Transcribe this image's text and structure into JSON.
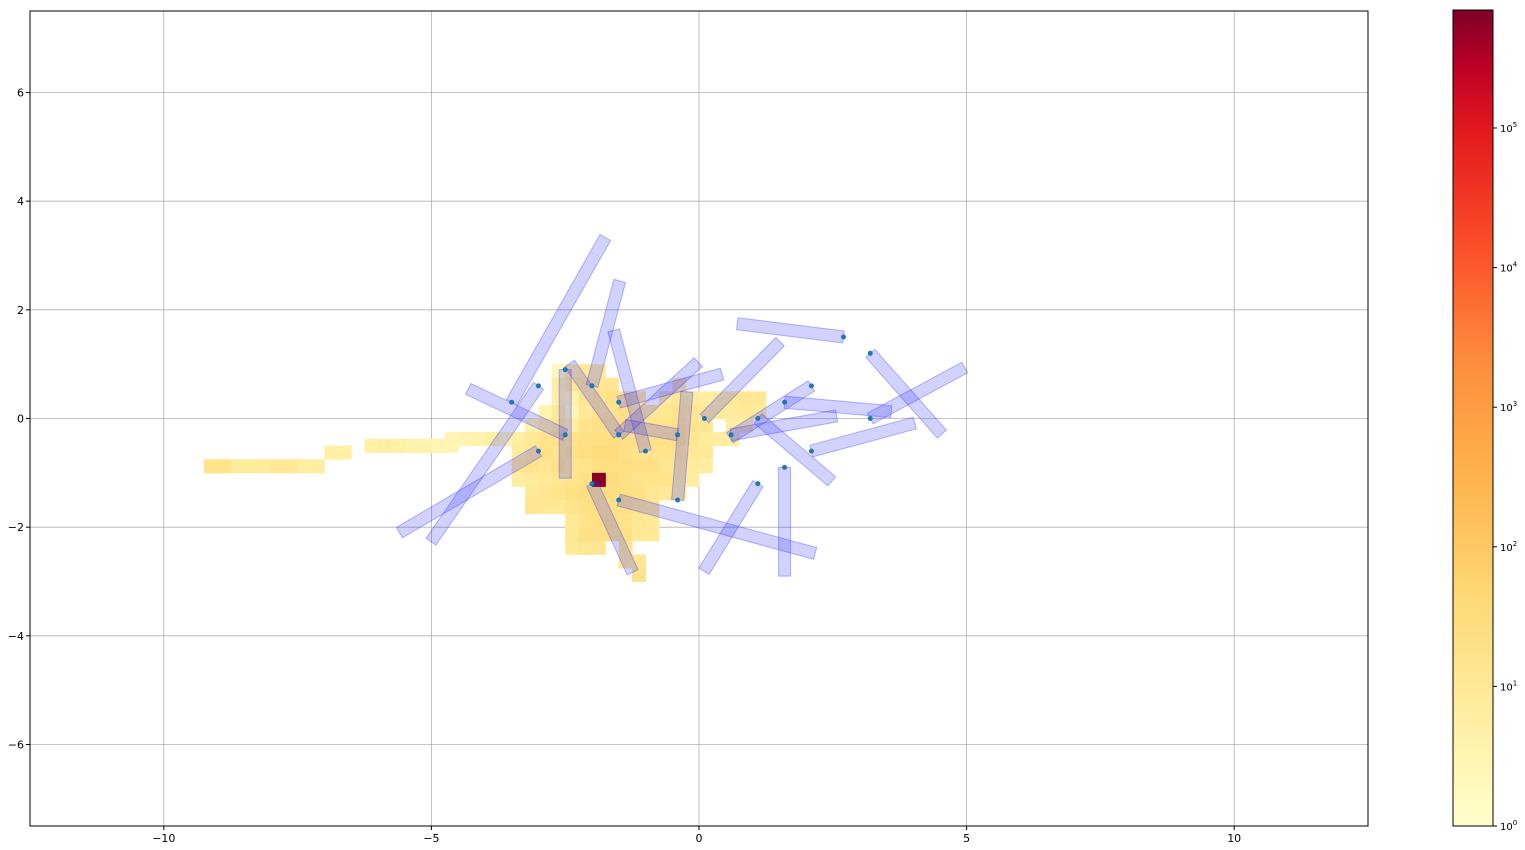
{
  "chart_data": {
    "type": "heatmap",
    "title": "",
    "xlabel": "",
    "ylabel": "",
    "xlim": [
      -12.5,
      12.5
    ],
    "ylim": [
      -7.5,
      7.5
    ],
    "grid": true,
    "x_ticks": [
      {
        "value": -10,
        "label": "−10"
      },
      {
        "value": -5,
        "label": "−5"
      },
      {
        "value": 0,
        "label": "0"
      },
      {
        "value": 5,
        "label": "5"
      },
      {
        "value": 10,
        "label": "10"
      }
    ],
    "y_ticks": [
      {
        "value": -6,
        "label": "−6"
      },
      {
        "value": -4,
        "label": "−4"
      },
      {
        "value": -2,
        "label": "−2"
      },
      {
        "value": 0,
        "label": "0"
      },
      {
        "value": 2,
        "label": "2"
      },
      {
        "value": 4,
        "label": "4"
      },
      {
        "value": 6,
        "label": "6"
      }
    ],
    "colorbar": {
      "scale": "log",
      "colormap": "YlOrRd",
      "range": [
        1,
        700000
      ],
      "ticks": [
        {
          "exp": 0,
          "label": "10",
          "sup": "0"
        },
        {
          "exp": 1,
          "label": "10",
          "sup": "1"
        },
        {
          "exp": 2,
          "label": "10",
          "sup": "2"
        },
        {
          "exp": 3,
          "label": "10",
          "sup": "3"
        },
        {
          "exp": 4,
          "label": "10",
          "sup": "4"
        },
        {
          "exp": 5,
          "label": "10",
          "sup": "5"
        }
      ]
    },
    "histogram_cell_size": 0.25,
    "cells": [
      [
        -9.125,
        -0.875,
        1.2
      ],
      [
        -8.875,
        -0.875,
        1.2
      ],
      [
        -8.625,
        -0.875,
        0.9
      ],
      [
        -8.375,
        -0.875,
        0.9
      ],
      [
        -8.125,
        -0.875,
        0.9
      ],
      [
        -7.875,
        -0.875,
        1.0
      ],
      [
        -7.625,
        -0.875,
        1.0
      ],
      [
        -7.375,
        -0.875,
        0.8
      ],
      [
        -7.125,
        -0.875,
        0.8
      ],
      [
        -6.875,
        -0.625,
        0.7
      ],
      [
        -6.625,
        -0.625,
        0.7
      ],
      [
        -6.125,
        -0.5,
        0.7
      ],
      [
        -5.875,
        -0.5,
        0.8
      ],
      [
        -5.625,
        -0.5,
        0.7
      ],
      [
        -5.375,
        -0.5,
        0.6
      ],
      [
        -5.125,
        -0.5,
        0.6
      ],
      [
        -4.875,
        -0.5,
        0.5
      ],
      [
        -4.625,
        -0.5,
        0.4
      ],
      [
        -4.625,
        -0.375,
        0.4
      ],
      [
        -4.375,
        -0.375,
        0.5
      ],
      [
        -4.125,
        -0.375,
        0.6
      ],
      [
        -3.875,
        -0.375,
        0.7
      ],
      [
        -3.625,
        -0.375,
        0.5
      ],
      [
        -3.375,
        -0.375,
        0.8
      ],
      [
        -3.375,
        -0.625,
        0.9
      ],
      [
        -3.375,
        -0.875,
        1.1
      ],
      [
        -3.375,
        -1.125,
        0.8
      ],
      [
        -3.125,
        -0.125,
        0.6
      ],
      [
        -3.125,
        -0.375,
        1.0
      ],
      [
        -3.125,
        -0.625,
        1.1
      ],
      [
        -3.125,
        -0.875,
        1.2
      ],
      [
        -3.125,
        -1.125,
        0.9
      ],
      [
        -3.125,
        -1.375,
        1.0
      ],
      [
        -3.125,
        -1.625,
        1.1
      ],
      [
        -2.875,
        0.125,
        0.5
      ],
      [
        -2.875,
        -0.125,
        0.9
      ],
      [
        -2.875,
        -0.375,
        1.2
      ],
      [
        -2.875,
        -0.625,
        1.3
      ],
      [
        -2.875,
        -0.875,
        1.1
      ],
      [
        -2.875,
        -1.125,
        1.0
      ],
      [
        -2.875,
        -1.375,
        1.1
      ],
      [
        -2.875,
        -1.625,
        1.0
      ],
      [
        -2.625,
        0.875,
        0.3
      ],
      [
        -2.625,
        0.625,
        0.8
      ],
      [
        -2.625,
        0.375,
        0.7
      ],
      [
        -2.625,
        0.125,
        1.0
      ],
      [
        -2.625,
        -0.125,
        1.2
      ],
      [
        -2.625,
        -0.375,
        1.3
      ],
      [
        -2.625,
        -0.625,
        1.2
      ],
      [
        -2.625,
        -0.875,
        1.3
      ],
      [
        -2.625,
        -1.125,
        1.1
      ],
      [
        -2.625,
        -1.375,
        1.2
      ],
      [
        -2.625,
        -1.625,
        1.0
      ],
      [
        -2.375,
        0.875,
        0.9
      ],
      [
        -2.375,
        0.625,
        1.1
      ],
      [
        -2.375,
        0.375,
        0.6
      ],
      [
        -2.375,
        0.125,
        0.4
      ],
      [
        -2.375,
        -0.125,
        0.8
      ],
      [
        -2.375,
        -0.375,
        1.2
      ],
      [
        -2.375,
        -0.625,
        1.3
      ],
      [
        -2.375,
        -0.875,
        1.1
      ],
      [
        -2.375,
        -1.125,
        1.2
      ],
      [
        -2.375,
        -1.375,
        1.3
      ],
      [
        -2.375,
        -1.625,
        1.2
      ],
      [
        -2.375,
        -1.875,
        1.0
      ],
      [
        -2.375,
        -2.125,
        1.1
      ],
      [
        -2.375,
        -2.375,
        1.0
      ],
      [
        -2.125,
        0.875,
        1.0
      ],
      [
        -2.125,
        0.625,
        1.2
      ],
      [
        -2.125,
        0.375,
        1.1
      ],
      [
        -2.125,
        0.125,
        1.0
      ],
      [
        -2.125,
        -0.125,
        1.2
      ],
      [
        -2.125,
        -0.375,
        1.3
      ],
      [
        -2.125,
        -0.625,
        1.4
      ],
      [
        -2.125,
        -0.875,
        1.2
      ],
      [
        -2.125,
        -1.125,
        1.3
      ],
      [
        -2.125,
        -1.375,
        1.4
      ],
      [
        -2.125,
        -1.625,
        1.3
      ],
      [
        -2.125,
        -1.875,
        1.2
      ],
      [
        -2.125,
        -2.125,
        1.3
      ],
      [
        -2.125,
        -2.375,
        1.1
      ],
      [
        -1.875,
        0.875,
        0.9
      ],
      [
        -1.875,
        0.625,
        1.1
      ],
      [
        -1.875,
        0.375,
        1.2
      ],
      [
        -1.875,
        0.125,
        1.2
      ],
      [
        -1.875,
        -0.125,
        1.3
      ],
      [
        -1.875,
        -0.375,
        1.4
      ],
      [
        -1.875,
        -0.625,
        1.5
      ],
      [
        -1.875,
        -0.875,
        1.4
      ],
      [
        -1.875,
        -1.375,
        1.4
      ],
      [
        -1.875,
        -1.625,
        1.3
      ],
      [
        -1.875,
        -1.875,
        1.4
      ],
      [
        -1.875,
        -2.125,
        1.3
      ],
      [
        -1.875,
        -2.375,
        1.1
      ],
      [
        -1.625,
        0.625,
        1.1
      ],
      [
        -1.625,
        0.375,
        1.3
      ],
      [
        -1.625,
        0.125,
        1.2
      ],
      [
        -1.625,
        -0.125,
        1.3
      ],
      [
        -1.625,
        -0.375,
        1.4
      ],
      [
        -1.625,
        -0.625,
        1.5
      ],
      [
        -1.625,
        -0.875,
        1.4
      ],
      [
        -1.625,
        -1.125,
        1.5
      ],
      [
        -1.625,
        -1.375,
        1.4
      ],
      [
        -1.625,
        -1.625,
        1.3
      ],
      [
        -1.625,
        -1.875,
        1.4
      ],
      [
        -1.625,
        -2.125,
        1.3
      ],
      [
        -1.375,
        0.375,
        1.2
      ],
      [
        -1.375,
        0.125,
        1.3
      ],
      [
        -1.375,
        -0.125,
        1.4
      ],
      [
        -1.375,
        -0.375,
        1.4
      ],
      [
        -1.375,
        -0.625,
        1.3
      ],
      [
        -1.375,
        -0.875,
        1.4
      ],
      [
        -1.375,
        -1.125,
        1.3
      ],
      [
        -1.375,
        -1.375,
        1.4
      ],
      [
        -1.375,
        -1.625,
        1.3
      ],
      [
        -1.375,
        -1.875,
        1.2
      ],
      [
        -1.375,
        -2.125,
        1.3
      ],
      [
        -1.375,
        -2.375,
        1.2
      ],
      [
        -1.375,
        -2.625,
        1.1
      ],
      [
        -1.125,
        0.375,
        1.1
      ],
      [
        -1.125,
        0.125,
        1.2
      ],
      [
        -1.125,
        -0.125,
        1.3
      ],
      [
        -1.125,
        -0.375,
        1.3
      ],
      [
        -1.125,
        -0.625,
        1.2
      ],
      [
        -1.125,
        -0.875,
        1.3
      ],
      [
        -1.125,
        -1.125,
        1.2
      ],
      [
        -1.125,
        -1.375,
        1.3
      ],
      [
        -1.125,
        -1.625,
        1.2
      ],
      [
        -1.125,
        -1.875,
        1.1
      ],
      [
        -1.125,
        -2.125,
        1.0
      ],
      [
        -1.125,
        -2.625,
        1.1
      ],
      [
        -1.125,
        -2.875,
        1.2
      ],
      [
        -0.875,
        0.125,
        1.1
      ],
      [
        -0.875,
        -0.125,
        1.2
      ],
      [
        -0.875,
        -0.375,
        1.3
      ],
      [
        -0.875,
        -0.625,
        1.2
      ],
      [
        -0.875,
        -0.875,
        1.3
      ],
      [
        -0.875,
        -1.125,
        1.2
      ],
      [
        -0.875,
        -1.375,
        1.1
      ],
      [
        -0.875,
        -1.625,
        1.1
      ],
      [
        -0.875,
        -1.875,
        1.0
      ],
      [
        -0.875,
        -2.125,
        1.0
      ],
      [
        -0.625,
        0.375,
        0.9
      ],
      [
        -0.625,
        0.125,
        1.1
      ],
      [
        -0.625,
        -0.125,
        1.2
      ],
      [
        -0.625,
        -0.375,
        1.3
      ],
      [
        -0.625,
        -0.625,
        1.2
      ],
      [
        -0.625,
        -0.875,
        1.1
      ],
      [
        -0.625,
        -1.125,
        1.2
      ],
      [
        -0.625,
        -1.375,
        1.0
      ],
      [
        -0.375,
        0.625,
        0.8
      ],
      [
        -0.375,
        0.375,
        1.0
      ],
      [
        -0.375,
        0.125,
        1.2
      ],
      [
        -0.375,
        -0.125,
        1.3
      ],
      [
        -0.375,
        -0.375,
        1.4
      ],
      [
        -0.375,
        -0.625,
        1.2
      ],
      [
        -0.375,
        -0.875,
        1.1
      ],
      [
        -0.375,
        -1.125,
        1.0
      ],
      [
        -0.375,
        -1.375,
        0.9
      ],
      [
        -0.125,
        0.375,
        0.9
      ],
      [
        -0.125,
        0.125,
        1.1
      ],
      [
        -0.125,
        -0.125,
        1.2
      ],
      [
        -0.125,
        -0.375,
        1.1
      ],
      [
        -0.125,
        -0.625,
        1.0
      ],
      [
        -0.125,
        -0.875,
        0.9
      ],
      [
        -0.125,
        -1.125,
        0.8
      ],
      [
        0.125,
        0.375,
        0.8
      ],
      [
        0.125,
        0.125,
        1.0
      ],
      [
        0.125,
        -0.125,
        1.1
      ],
      [
        0.125,
        -0.375,
        0.9
      ],
      [
        0.125,
        -0.625,
        1.0
      ],
      [
        0.125,
        -0.875,
        0.8
      ],
      [
        0.375,
        0.375,
        0.9
      ],
      [
        0.375,
        0.125,
        1.0
      ],
      [
        0.375,
        -0.375,
        0.8
      ],
      [
        0.625,
        0.375,
        1.0
      ],
      [
        0.625,
        0.125,
        0.9
      ],
      [
        0.625,
        -0.125,
        0.8
      ],
      [
        0.625,
        -0.375,
        0.7
      ],
      [
        0.875,
        0.375,
        1.1
      ],
      [
        0.875,
        0.125,
        1.0
      ],
      [
        0.875,
        -0.125,
        0.8
      ],
      [
        1.125,
        0.375,
        1.0
      ],
      [
        1.125,
        0.125,
        0.9
      ],
      [
        -1.875,
        -1.125,
        5.8
      ]
    ],
    "agents": [
      {
        "x": -3.5,
        "y": 0.3,
        "angle": 60,
        "length": 3.5
      },
      {
        "x": -3.0,
        "y": 0.6,
        "angle": 235,
        "length": 3.5
      },
      {
        "x": -2.5,
        "y": 0.9,
        "angle": 270,
        "length": 2.0
      },
      {
        "x": -2.0,
        "y": 0.6,
        "angle": 75,
        "length": 2.0
      },
      {
        "x": -1.5,
        "y": 0.3,
        "angle": 15,
        "length": 2.0
      },
      {
        "x": -1.0,
        "y": -0.6,
        "angle": 105,
        "length": 2.3
      },
      {
        "x": -0.4,
        "y": -0.3,
        "angle": 170,
        "length": 1.0
      },
      {
        "x": 0.1,
        "y": 0.0,
        "angle": 45,
        "length": 2.0
      },
      {
        "x": -2.5,
        "y": -0.3,
        "angle": 155,
        "length": 2.0
      },
      {
        "x": -3.0,
        "y": -0.6,
        "angle": 210,
        "length": 3.0
      },
      {
        "x": -1.5,
        "y": -0.3,
        "angle": 125,
        "length": 1.6
      },
      {
        "x": -0.4,
        "y": -1.5,
        "angle": 85,
        "length": 2.0
      },
      {
        "x": -1.5,
        "y": -1.5,
        "angle": 345,
        "length": 3.8
      },
      {
        "x": -2.0,
        "y": -1.2,
        "angle": 295,
        "length": 1.8
      },
      {
        "x": -1.5,
        "y": -0.3,
        "angle": 42,
        "length": 2.0
      },
      {
        "x": 1.1,
        "y": -1.2,
        "angle": 238,
        "length": 1.9
      },
      {
        "x": 1.6,
        "y": -0.9,
        "angle": 270,
        "length": 2.0
      },
      {
        "x": 1.1,
        "y": 0.0,
        "angle": 320,
        "length": 1.8
      },
      {
        "x": 0.6,
        "y": -0.3,
        "angle": 10,
        "length": 2.0
      },
      {
        "x": 2.1,
        "y": 0.6,
        "angle": 212,
        "length": 1.8
      },
      {
        "x": 1.6,
        "y": 0.3,
        "angle": 355,
        "length": 2.0
      },
      {
        "x": 2.1,
        "y": -0.6,
        "angle": 15,
        "length": 2.0
      },
      {
        "x": 2.7,
        "y": 1.5,
        "angle": 173,
        "length": 2.0
      },
      {
        "x": 3.2,
        "y": 1.2,
        "angle": 312,
        "length": 2.0
      },
      {
        "x": 3.2,
        "y": 0.0,
        "angle": 28,
        "length": 2.0
      }
    ],
    "colors": {
      "agent_fill": "#3333ff",
      "agent_dot": "#1f77b4",
      "grid": "#b0b0b0"
    }
  }
}
